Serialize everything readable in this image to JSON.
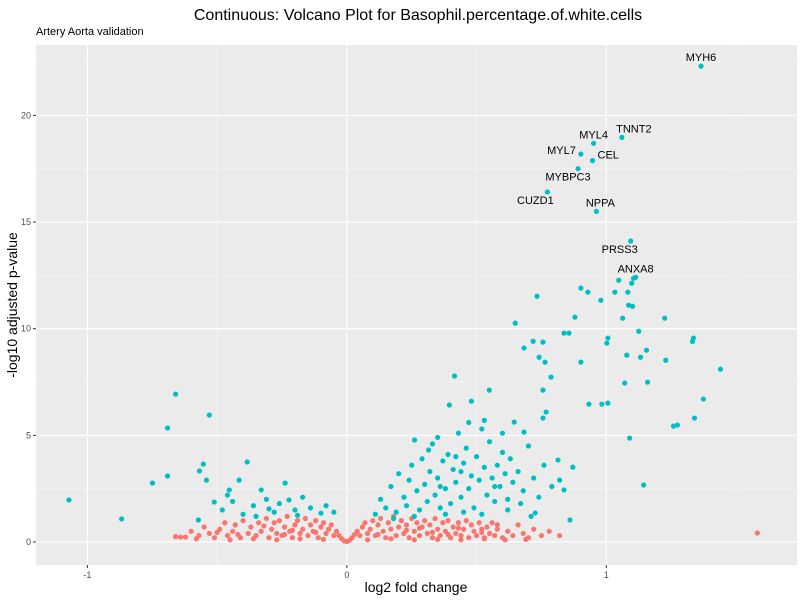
{
  "chart_data": {
    "type": "scatter",
    "title": "Continuous: Volcano Plot for Basophil.percentage.of.white.cells",
    "subtitle": "Artery Aorta validation",
    "xlabel": "log2 fold change",
    "ylabel": "-log10 adjusted p-value",
    "xlim": [
      -1.198,
      1.735
    ],
    "ylim": [
      -1.08,
      23.3
    ],
    "x_ticks": [
      -1,
      0,
      1
    ],
    "x_tick_labels": [
      "-1",
      "0",
      "1"
    ],
    "y_ticks": [
      0,
      5,
      10,
      15,
      20
    ],
    "y_tick_labels": [
      "0",
      "5",
      "10",
      "15",
      "20"
    ],
    "grid": true,
    "legend": "none",
    "colors": {
      "significant": "#00BFC4",
      "not_significant": "#F8766D",
      "panel": "#EBEBEB"
    },
    "labeled_points": [
      {
        "label": "MYH6",
        "x": 1.365,
        "y": 22.31
      },
      {
        "label": "TNNT2",
        "x": 1.06,
        "y": 18.97
      },
      {
        "label": "MYL4",
        "x": 0.951,
        "y": 18.69
      },
      {
        "label": "MYL7",
        "x": 0.902,
        "y": 18.19
      },
      {
        "label": "CEL",
        "x": 0.947,
        "y": 17.88
      },
      {
        "label": "MYBPC3",
        "x": 0.891,
        "y": 17.5
      },
      {
        "label": "CUZD1",
        "x": 0.773,
        "y": 16.41
      },
      {
        "label": "NPPA",
        "x": 0.962,
        "y": 15.5
      },
      {
        "label": "PRSS3",
        "x": 1.094,
        "y": 14.11
      },
      {
        "label": "ANXA8",
        "x": 1.113,
        "y": 12.41
      }
    ],
    "significant_points": [
      [
        -1.071,
        1.97
      ],
      [
        -0.868,
        1.08
      ],
      [
        -0.749,
        2.76
      ],
      [
        -0.691,
        3.09
      ],
      [
        -0.66,
        6.93
      ],
      [
        -0.691,
        5.34
      ],
      [
        -0.53,
        5.95
      ],
      [
        -0.553,
        3.65
      ],
      [
        -0.568,
        3.33
      ],
      [
        -0.541,
        2.9
      ],
      [
        -0.384,
        3.75
      ],
      [
        -0.415,
        2.9
      ],
      [
        -0.453,
        2.44
      ],
      [
        -0.33,
        2.44
      ],
      [
        -0.238,
        2.76
      ],
      [
        -0.223,
        1.97
      ],
      [
        -0.572,
        1.03
      ],
      [
        -0.511,
        1.87
      ],
      [
        -0.48,
        1.5
      ],
      [
        -0.44,
        1.9
      ],
      [
        -0.4,
        1.3
      ],
      [
        -0.36,
        1.7
      ],
      [
        -0.31,
        2.0
      ],
      [
        -0.28,
        1.4
      ],
      [
        -0.26,
        1.8
      ],
      [
        -0.2,
        1.5
      ],
      [
        -0.17,
        2.1
      ],
      [
        -0.14,
        1.6
      ],
      [
        -0.1,
        1.35
      ],
      [
        -0.46,
        2.2
      ],
      [
        -0.35,
        1.2
      ],
      [
        -0.3,
        1.55
      ],
      [
        -0.19,
        1.25
      ],
      [
        -0.08,
        1.7
      ],
      [
        -0.05,
        1.4
      ],
      [
        0.733,
        11.52
      ],
      [
        0.649,
        10.26
      ],
      [
        0.683,
        9.09
      ],
      [
        0.718,
        9.41
      ],
      [
        0.756,
        9.37
      ],
      [
        0.741,
        8.66
      ],
      [
        0.764,
        8.43
      ],
      [
        0.787,
        7.73
      ],
      [
        0.837,
        9.79
      ],
      [
        0.856,
        9.79
      ],
      [
        0.879,
        10.54
      ],
      [
        0.902,
        8.43
      ],
      [
        0.929,
        11.71
      ],
      [
        0.902,
        11.9
      ],
      [
        0.979,
        11.33
      ],
      [
        1.006,
        9.56
      ],
      [
        1.002,
        9.32
      ],
      [
        1.033,
        11.71
      ],
      [
        1.063,
        10.49
      ],
      [
        1.086,
        11.1
      ],
      [
        1.098,
        12.13
      ],
      [
        1.083,
        11.71
      ],
      [
        1.105,
        12.36
      ],
      [
        1.048,
        12.27
      ],
      [
        1.101,
        11.05
      ],
      [
        1.125,
        9.88
      ],
      [
        1.155,
        8.99
      ],
      [
        1.132,
        8.66
      ],
      [
        1.079,
        8.76
      ],
      [
        1.071,
        7.45
      ],
      [
        1.159,
        7.49
      ],
      [
        1.225,
        10.49
      ],
      [
        1.229,
        8.52
      ],
      [
        1.336,
        9.56
      ],
      [
        1.332,
        9.4
      ],
      [
        1.44,
        8.1
      ],
      [
        1.374,
        6.7
      ],
      [
        1.34,
        5.81
      ],
      [
        1.259,
        5.43
      ],
      [
        1.274,
        5.48
      ],
      [
        1.09,
        4.87
      ],
      [
        1.144,
        2.67
      ],
      [
        0.933,
        6.46
      ],
      [
        0.983,
        6.46
      ],
      [
        1.006,
        6.51
      ],
      [
        0.415,
        7.78
      ],
      [
        0.549,
        7.12
      ],
      [
        0.756,
        7.12
      ],
      [
        0.756,
        5.81
      ],
      [
        0.768,
        6.09
      ],
      [
        0.683,
        5.15
      ],
      [
        0.645,
        5.62
      ],
      [
        0.48,
        6.6
      ],
      [
        0.395,
        6.42
      ],
      [
        0.814,
        3.84
      ],
      [
        0.871,
        3.51
      ],
      [
        0.726,
        1.36
      ],
      [
        0.86,
        1.03
      ],
      [
        0.837,
        2.44
      ],
      [
        0.261,
        4.78
      ],
      [
        0.315,
        4.31
      ],
      [
        0.11,
        1.3
      ],
      [
        0.13,
        2.0
      ],
      [
        0.15,
        1.6
      ],
      [
        0.17,
        2.6
      ],
      [
        0.19,
        1.4
      ],
      [
        0.2,
        3.2
      ],
      [
        0.22,
        2.1
      ],
      [
        0.23,
        1.7
      ],
      [
        0.24,
        2.9
      ],
      [
        0.25,
        3.6
      ],
      [
        0.27,
        2.4
      ],
      [
        0.28,
        1.5
      ],
      [
        0.29,
        3.9
      ],
      [
        0.3,
        2.7
      ],
      [
        0.31,
        1.9
      ],
      [
        0.32,
        3.3
      ],
      [
        0.33,
        4.6
      ],
      [
        0.34,
        2.2
      ],
      [
        0.35,
        3.0
      ],
      [
        0.36,
        1.6
      ],
      [
        0.37,
        3.8
      ],
      [
        0.38,
        2.5
      ],
      [
        0.39,
        4.1
      ],
      [
        0.4,
        1.8
      ],
      [
        0.41,
        3.4
      ],
      [
        0.42,
        2.8
      ],
      [
        0.43,
        5.1
      ],
      [
        0.44,
        2.1
      ],
      [
        0.45,
        3.7
      ],
      [
        0.46,
        4.4
      ],
      [
        0.47,
        2.5
      ],
      [
        0.48,
        3.1
      ],
      [
        0.49,
        1.6
      ],
      [
        0.5,
        4.0
      ],
      [
        0.51,
        2.9
      ],
      [
        0.52,
        5.3
      ],
      [
        0.53,
        3.5
      ],
      [
        0.54,
        2.2
      ],
      [
        0.55,
        4.7
      ],
      [
        0.56,
        3.0
      ],
      [
        0.57,
        1.9
      ],
      [
        0.58,
        3.6
      ],
      [
        0.59,
        2.6
      ],
      [
        0.6,
        4.2
      ],
      [
        0.61,
        3.2
      ],
      [
        0.62,
        2.0
      ],
      [
        0.63,
        3.9
      ],
      [
        0.64,
        2.8
      ],
      [
        0.66,
        3.3
      ],
      [
        0.68,
        2.4
      ],
      [
        0.7,
        4.5
      ],
      [
        0.72,
        3.0
      ],
      [
        0.74,
        2.1
      ],
      [
        0.76,
        3.6
      ],
      [
        0.79,
        2.6
      ],
      [
        0.82,
        2.9
      ],
      [
        0.35,
        4.9
      ],
      [
        0.47,
        5.6
      ],
      [
        0.53,
        5.7
      ],
      [
        0.42,
        4.0
      ],
      [
        0.26,
        1.2
      ],
      [
        0.18,
        1.1
      ],
      [
        0.38,
        1.3
      ],
      [
        0.57,
        2.6
      ],
      [
        0.45,
        1.4
      ],
      [
        0.62,
        1.5
      ],
      [
        0.67,
        1.8
      ],
      [
        0.71,
        1.2
      ],
      [
        0.52,
        1.3
      ],
      [
        0.6,
        5.1
      ],
      [
        0.44,
        3.3
      ],
      [
        0.36,
        2.6
      ]
    ],
    "nonsignificant_points": [
      [
        1.582,
        0.42
      ],
      [
        -0.641,
        0.23
      ],
      [
        -0.622,
        0.23
      ],
      [
        -0.6,
        0.5
      ],
      [
        -0.57,
        0.3
      ],
      [
        -0.55,
        0.7
      ],
      [
        -0.53,
        0.4
      ],
      [
        -0.51,
        0.2
      ],
      [
        -0.49,
        0.6
      ],
      [
        -0.47,
        0.9
      ],
      [
        -0.46,
        0.3
      ],
      [
        -0.44,
        0.5
      ],
      [
        -0.43,
        0.8
      ],
      [
        -0.41,
        0.2
      ],
      [
        -0.4,
        1.0
      ],
      [
        -0.38,
        0.4
      ],
      [
        -0.37,
        0.7
      ],
      [
        -0.35,
        0.3
      ],
      [
        -0.34,
        0.9
      ],
      [
        -0.33,
        0.5
      ],
      [
        -0.31,
        1.1
      ],
      [
        -0.3,
        0.2
      ],
      [
        -0.29,
        0.6
      ],
      [
        -0.28,
        0.9
      ],
      [
        -0.27,
        0.4
      ],
      [
        -0.26,
        1.0
      ],
      [
        -0.25,
        0.3
      ],
      [
        -0.24,
        0.7
      ],
      [
        -0.23,
        1.2
      ],
      [
        -0.22,
        0.5
      ],
      [
        -0.21,
        0.2
      ],
      [
        -0.2,
        0.8
      ],
      [
        -0.19,
        1.0
      ],
      [
        -0.18,
        0.4
      ],
      [
        -0.17,
        0.6
      ],
      [
        -0.16,
        1.1
      ],
      [
        -0.15,
        0.3
      ],
      [
        -0.14,
        0.8
      ],
      [
        -0.13,
        0.5
      ],
      [
        -0.12,
        1.0
      ],
      [
        -0.11,
        0.2
      ],
      [
        -0.1,
        0.7
      ],
      [
        -0.09,
        0.9
      ],
      [
        -0.08,
        0.4
      ],
      [
        -0.07,
        0.6
      ],
      [
        -0.06,
        0.8
      ],
      [
        -0.05,
        0.3
      ],
      [
        -0.04,
        0.5
      ],
      [
        -0.03,
        0.3
      ],
      [
        -0.02,
        0.15
      ],
      [
        -0.01,
        0.05
      ],
      [
        0.0,
        0.02
      ],
      [
        0.01,
        0.08
      ],
      [
        0.02,
        0.2
      ],
      [
        0.03,
        0.35
      ],
      [
        0.04,
        0.5
      ],
      [
        0.05,
        0.3
      ],
      [
        0.06,
        0.7
      ],
      [
        0.07,
        0.9
      ],
      [
        0.08,
        0.4
      ],
      [
        0.09,
        0.6
      ],
      [
        0.1,
        1.0
      ],
      [
        0.11,
        0.3
      ],
      [
        0.12,
        0.8
      ],
      [
        0.13,
        1.1
      ],
      [
        0.14,
        0.5
      ],
      [
        0.15,
        0.2
      ],
      [
        0.16,
        0.9
      ],
      [
        0.17,
        0.6
      ],
      [
        0.18,
        1.2
      ],
      [
        0.19,
        0.3
      ],
      [
        0.2,
        0.7
      ],
      [
        0.21,
        1.0
      ],
      [
        0.22,
        0.4
      ],
      [
        0.23,
        0.8
      ],
      [
        0.24,
        0.2
      ],
      [
        0.25,
        1.1
      ],
      [
        0.26,
        0.5
      ],
      [
        0.27,
        0.9
      ],
      [
        0.28,
        0.3
      ],
      [
        0.29,
        0.7
      ],
      [
        0.3,
        1.0
      ],
      [
        0.31,
        0.4
      ],
      [
        0.32,
        0.8
      ],
      [
        0.33,
        0.2
      ],
      [
        0.34,
        1.1
      ],
      [
        0.35,
        0.6
      ],
      [
        0.36,
        0.3
      ],
      [
        0.37,
        0.9
      ],
      [
        0.38,
        0.5
      ],
      [
        0.39,
        1.0
      ],
      [
        0.4,
        0.2
      ],
      [
        0.41,
        0.7
      ],
      [
        0.42,
        0.4
      ],
      [
        0.43,
        0.9
      ],
      [
        0.44,
        0.3
      ],
      [
        0.45,
        0.6
      ],
      [
        0.46,
        1.0
      ],
      [
        0.47,
        0.2
      ],
      [
        0.48,
        0.8
      ],
      [
        0.49,
        0.5
      ],
      [
        0.5,
        0.3
      ],
      [
        0.51,
        0.9
      ],
      [
        0.52,
        0.6
      ],
      [
        0.53,
        0.2
      ],
      [
        0.54,
        0.7
      ],
      [
        0.55,
        0.4
      ],
      [
        0.56,
        0.9
      ],
      [
        0.57,
        0.3
      ],
      [
        0.58,
        0.6
      ],
      [
        0.6,
        0.2
      ],
      [
        0.62,
        0.5
      ],
      [
        0.64,
        0.3
      ],
      [
        0.66,
        0.8
      ],
      [
        0.68,
        0.4
      ],
      [
        0.7,
        0.2
      ],
      [
        0.72,
        0.6
      ],
      [
        0.75,
        0.3
      ],
      [
        0.78,
        0.5
      ],
      [
        0.82,
        0.3
      ],
      [
        -0.66,
        0.25
      ],
      [
        -0.58,
        0.15
      ],
      [
        -0.45,
        0.1
      ],
      [
        -0.36,
        0.15
      ],
      [
        -0.27,
        0.1
      ],
      [
        -0.18,
        0.15
      ],
      [
        -0.09,
        0.12
      ],
      [
        0.08,
        0.1
      ],
      [
        0.17,
        0.15
      ],
      [
        0.26,
        0.1
      ],
      [
        0.35,
        0.12
      ],
      [
        0.44,
        0.1
      ],
      [
        0.53,
        0.15
      ],
      [
        0.61,
        0.1
      ],
      [
        0.69,
        0.12
      ],
      [
        -0.32,
        0.75
      ],
      [
        -0.21,
        0.55
      ],
      [
        -0.12,
        0.45
      ],
      [
        0.12,
        0.35
      ],
      [
        0.23,
        0.55
      ],
      [
        0.33,
        0.45
      ],
      [
        0.43,
        0.65
      ],
      [
        0.52,
        0.45
      ],
      [
        0.58,
        0.8
      ],
      [
        -0.42,
        0.35
      ],
      [
        -0.5,
        0.45
      ],
      [
        -0.24,
        0.35
      ],
      [
        0.28,
        0.65
      ],
      [
        0.39,
        0.35
      ]
    ]
  }
}
